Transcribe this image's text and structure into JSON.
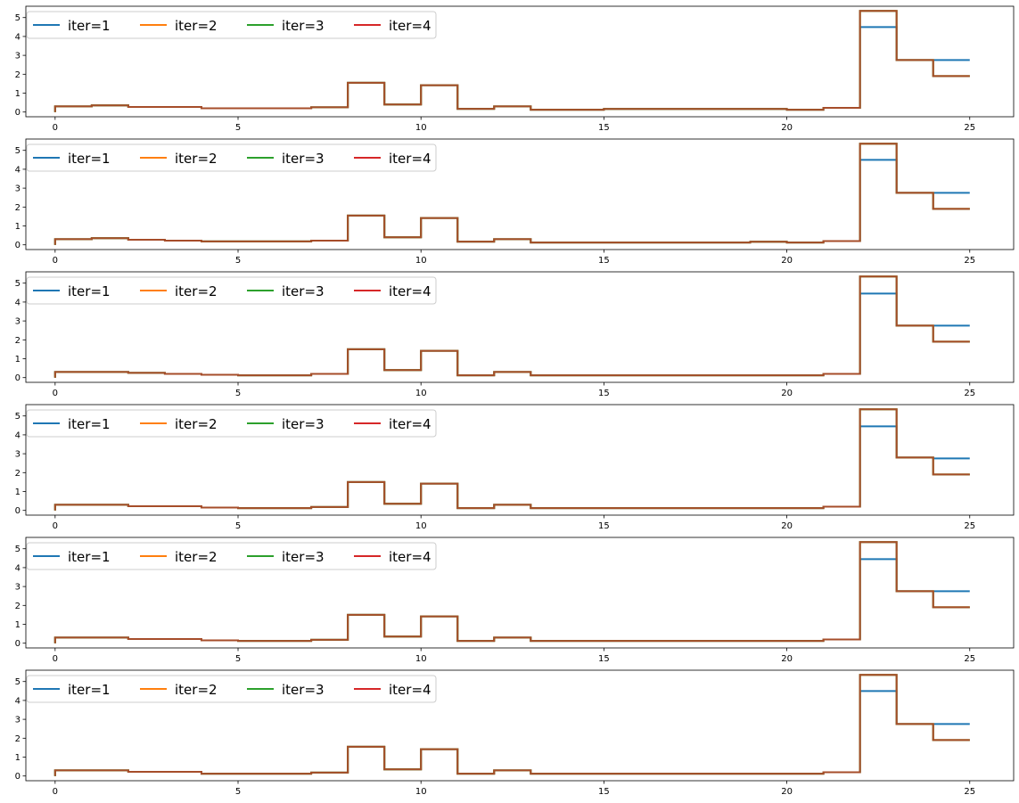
{
  "colors": {
    "iter1": "#1f77b4",
    "iter2": "#ff7f0e",
    "iter3": "#2ca02c",
    "iter4": "#d62728",
    "overlap": "#a64d2a"
  },
  "chart_data": [
    {
      "type": "line",
      "drawstyle": "steps-post",
      "xlim": [
        -0.8,
        26.2
      ],
      "ylim": [
        -0.25,
        5.6
      ],
      "xticks": [
        "0",
        "5",
        "10",
        "15",
        "20",
        "25"
      ],
      "yticks": [
        "0",
        "1",
        "2",
        "3",
        "4",
        "5"
      ],
      "legend": {
        "placement": "top-left",
        "ncol": 4
      },
      "x": [
        0,
        1,
        2,
        3,
        4,
        5,
        6,
        7,
        8,
        9,
        10,
        11,
        12,
        13,
        14,
        15,
        16,
        17,
        18,
        19,
        20,
        21,
        22,
        23,
        24,
        25
      ],
      "series": [
        {
          "name": "iter=1",
          "values": [
            0.3,
            0.35,
            0.27,
            0.27,
            0.2,
            0.2,
            0.2,
            0.25,
            1.55,
            0.4,
            1.42,
            0.17,
            0.3,
            0.12,
            0.12,
            0.16,
            0.16,
            0.16,
            0.16,
            0.16,
            0.12,
            0.22,
            4.5,
            2.75,
            2.75,
            2.75
          ]
        },
        {
          "name": "iter=2",
          "values": [
            0.3,
            0.35,
            0.27,
            0.27,
            0.2,
            0.2,
            0.2,
            0.25,
            1.55,
            0.4,
            1.42,
            0.17,
            0.3,
            0.12,
            0.12,
            0.16,
            0.16,
            0.16,
            0.16,
            0.16,
            0.12,
            0.22,
            5.35,
            2.75,
            1.9,
            1.9
          ]
        },
        {
          "name": "iter=3",
          "values": [
            0.3,
            0.35,
            0.27,
            0.27,
            0.2,
            0.2,
            0.2,
            0.25,
            1.55,
            0.4,
            1.42,
            0.17,
            0.3,
            0.12,
            0.12,
            0.16,
            0.16,
            0.16,
            0.16,
            0.16,
            0.12,
            0.22,
            5.35,
            2.75,
            1.9,
            1.9
          ]
        },
        {
          "name": "iter=4",
          "values": [
            0.3,
            0.35,
            0.27,
            0.27,
            0.2,
            0.2,
            0.2,
            0.25,
            1.55,
            0.4,
            1.42,
            0.17,
            0.3,
            0.12,
            0.12,
            0.16,
            0.16,
            0.16,
            0.16,
            0.16,
            0.12,
            0.22,
            5.35,
            2.75,
            1.9,
            1.9
          ]
        }
      ]
    },
    {
      "type": "line",
      "drawstyle": "steps-post",
      "xlim": [
        -0.8,
        26.2
      ],
      "ylim": [
        -0.25,
        5.6
      ],
      "xticks": [
        "0",
        "5",
        "10",
        "15",
        "20",
        "25"
      ],
      "yticks": [
        "0",
        "1",
        "2",
        "3",
        "4",
        "5"
      ],
      "legend": {
        "placement": "top-left",
        "ncol": 4
      },
      "x": [
        0,
        1,
        2,
        3,
        4,
        5,
        6,
        7,
        8,
        9,
        10,
        11,
        12,
        13,
        14,
        15,
        16,
        17,
        18,
        19,
        20,
        21,
        22,
        23,
        24,
        25
      ],
      "series": [
        {
          "name": "iter=1",
          "values": [
            0.3,
            0.35,
            0.27,
            0.22,
            0.18,
            0.18,
            0.18,
            0.22,
            1.55,
            0.4,
            1.42,
            0.17,
            0.3,
            0.12,
            0.12,
            0.12,
            0.12,
            0.12,
            0.12,
            0.16,
            0.12,
            0.2,
            4.5,
            2.75,
            2.75,
            2.75
          ]
        },
        {
          "name": "iter=2",
          "values": [
            0.3,
            0.35,
            0.27,
            0.22,
            0.18,
            0.18,
            0.18,
            0.22,
            1.55,
            0.4,
            1.42,
            0.17,
            0.3,
            0.12,
            0.12,
            0.12,
            0.12,
            0.12,
            0.12,
            0.16,
            0.12,
            0.2,
            5.35,
            2.75,
            1.9,
            1.9
          ]
        },
        {
          "name": "iter=3",
          "values": [
            0.3,
            0.35,
            0.27,
            0.22,
            0.18,
            0.18,
            0.18,
            0.22,
            1.55,
            0.4,
            1.42,
            0.17,
            0.3,
            0.12,
            0.12,
            0.12,
            0.12,
            0.12,
            0.12,
            0.16,
            0.12,
            0.2,
            5.35,
            2.75,
            1.9,
            1.9
          ]
        },
        {
          "name": "iter=4",
          "values": [
            0.3,
            0.35,
            0.27,
            0.22,
            0.18,
            0.18,
            0.18,
            0.22,
            1.55,
            0.4,
            1.42,
            0.17,
            0.3,
            0.12,
            0.12,
            0.12,
            0.12,
            0.12,
            0.12,
            0.16,
            0.12,
            0.2,
            5.35,
            2.75,
            1.9,
            1.9
          ]
        }
      ]
    },
    {
      "type": "line",
      "drawstyle": "steps-post",
      "xlim": [
        -0.8,
        26.2
      ],
      "ylim": [
        -0.25,
        5.6
      ],
      "xticks": [
        "0",
        "5",
        "10",
        "15",
        "20",
        "25"
      ],
      "yticks": [
        "0",
        "1",
        "2",
        "3",
        "4",
        "5"
      ],
      "legend": {
        "placement": "top-left",
        "ncol": 4
      },
      "x": [
        0,
        1,
        2,
        3,
        4,
        5,
        6,
        7,
        8,
        9,
        10,
        11,
        12,
        13,
        14,
        15,
        16,
        17,
        18,
        19,
        20,
        21,
        22,
        23,
        24,
        25
      ],
      "series": [
        {
          "name": "iter=1",
          "values": [
            0.3,
            0.3,
            0.25,
            0.2,
            0.15,
            0.12,
            0.12,
            0.2,
            1.5,
            0.4,
            1.42,
            0.12,
            0.3,
            0.12,
            0.12,
            0.12,
            0.12,
            0.12,
            0.12,
            0.12,
            0.12,
            0.2,
            4.45,
            2.75,
            2.75,
            2.75
          ]
        },
        {
          "name": "iter=2",
          "values": [
            0.3,
            0.3,
            0.25,
            0.2,
            0.15,
            0.12,
            0.12,
            0.2,
            1.5,
            0.4,
            1.42,
            0.12,
            0.3,
            0.12,
            0.12,
            0.12,
            0.12,
            0.12,
            0.12,
            0.12,
            0.12,
            0.2,
            5.35,
            2.75,
            1.9,
            1.9
          ]
        },
        {
          "name": "iter=3",
          "values": [
            0.3,
            0.3,
            0.25,
            0.2,
            0.15,
            0.12,
            0.12,
            0.2,
            1.5,
            0.4,
            1.42,
            0.12,
            0.3,
            0.12,
            0.12,
            0.12,
            0.12,
            0.12,
            0.12,
            0.12,
            0.12,
            0.2,
            5.35,
            2.75,
            1.9,
            1.9
          ]
        },
        {
          "name": "iter=4",
          "values": [
            0.3,
            0.3,
            0.25,
            0.2,
            0.15,
            0.12,
            0.12,
            0.2,
            1.5,
            0.4,
            1.42,
            0.12,
            0.3,
            0.12,
            0.12,
            0.12,
            0.12,
            0.12,
            0.12,
            0.12,
            0.12,
            0.2,
            5.35,
            2.75,
            1.9,
            1.9
          ]
        }
      ]
    },
    {
      "type": "line",
      "drawstyle": "steps-post",
      "xlim": [
        -0.8,
        26.2
      ],
      "ylim": [
        -0.25,
        5.6
      ],
      "xticks": [
        "0",
        "5",
        "10",
        "15",
        "20",
        "25"
      ],
      "yticks": [
        "0",
        "1",
        "2",
        "3",
        "4",
        "5"
      ],
      "legend": {
        "placement": "top-left",
        "ncol": 4
      },
      "x": [
        0,
        1,
        2,
        3,
        4,
        5,
        6,
        7,
        8,
        9,
        10,
        11,
        12,
        13,
        14,
        15,
        16,
        17,
        18,
        19,
        20,
        21,
        22,
        23,
        24,
        25
      ],
      "series": [
        {
          "name": "iter=1",
          "values": [
            0.3,
            0.3,
            0.22,
            0.22,
            0.15,
            0.12,
            0.12,
            0.18,
            1.5,
            0.35,
            1.42,
            0.12,
            0.3,
            0.12,
            0.12,
            0.12,
            0.12,
            0.12,
            0.12,
            0.12,
            0.12,
            0.2,
            4.45,
            2.8,
            2.75,
            2.75
          ]
        },
        {
          "name": "iter=2",
          "values": [
            0.3,
            0.3,
            0.22,
            0.22,
            0.15,
            0.12,
            0.12,
            0.18,
            1.5,
            0.35,
            1.42,
            0.12,
            0.3,
            0.12,
            0.12,
            0.12,
            0.12,
            0.12,
            0.12,
            0.12,
            0.12,
            0.2,
            5.35,
            2.8,
            1.9,
            1.9
          ]
        },
        {
          "name": "iter=3",
          "values": [
            0.3,
            0.3,
            0.22,
            0.22,
            0.15,
            0.12,
            0.12,
            0.18,
            1.5,
            0.35,
            1.42,
            0.12,
            0.3,
            0.12,
            0.12,
            0.12,
            0.12,
            0.12,
            0.12,
            0.12,
            0.12,
            0.2,
            5.35,
            2.8,
            1.9,
            1.9
          ]
        },
        {
          "name": "iter=4",
          "values": [
            0.3,
            0.3,
            0.22,
            0.22,
            0.15,
            0.12,
            0.12,
            0.18,
            1.5,
            0.35,
            1.42,
            0.12,
            0.3,
            0.12,
            0.12,
            0.12,
            0.12,
            0.12,
            0.12,
            0.12,
            0.12,
            0.2,
            5.35,
            2.8,
            1.9,
            1.9
          ]
        }
      ]
    },
    {
      "type": "line",
      "drawstyle": "steps-post",
      "xlim": [
        -0.8,
        26.2
      ],
      "ylim": [
        -0.25,
        5.6
      ],
      "xticks": [
        "0",
        "5",
        "10",
        "15",
        "20",
        "25"
      ],
      "yticks": [
        "0",
        "1",
        "2",
        "3",
        "4",
        "5"
      ],
      "legend": {
        "placement": "top-left",
        "ncol": 4
      },
      "x": [
        0,
        1,
        2,
        3,
        4,
        5,
        6,
        7,
        8,
        9,
        10,
        11,
        12,
        13,
        14,
        15,
        16,
        17,
        18,
        19,
        20,
        21,
        22,
        23,
        24,
        25
      ],
      "series": [
        {
          "name": "iter=1",
          "values": [
            0.3,
            0.3,
            0.22,
            0.22,
            0.15,
            0.12,
            0.12,
            0.18,
            1.5,
            0.35,
            1.42,
            0.12,
            0.3,
            0.12,
            0.12,
            0.12,
            0.12,
            0.12,
            0.12,
            0.12,
            0.12,
            0.2,
            4.45,
            2.75,
            2.75,
            2.75
          ]
        },
        {
          "name": "iter=2",
          "values": [
            0.3,
            0.3,
            0.22,
            0.22,
            0.15,
            0.12,
            0.12,
            0.18,
            1.5,
            0.35,
            1.42,
            0.12,
            0.3,
            0.12,
            0.12,
            0.12,
            0.12,
            0.12,
            0.12,
            0.12,
            0.12,
            0.2,
            5.35,
            2.75,
            1.9,
            1.9
          ]
        },
        {
          "name": "iter=3",
          "values": [
            0.3,
            0.3,
            0.22,
            0.22,
            0.15,
            0.12,
            0.12,
            0.18,
            1.5,
            0.35,
            1.42,
            0.12,
            0.3,
            0.12,
            0.12,
            0.12,
            0.12,
            0.12,
            0.12,
            0.12,
            0.12,
            0.2,
            5.35,
            2.75,
            1.9,
            1.9
          ]
        },
        {
          "name": "iter=4",
          "values": [
            0.3,
            0.3,
            0.22,
            0.22,
            0.15,
            0.12,
            0.12,
            0.18,
            1.5,
            0.35,
            1.42,
            0.12,
            0.3,
            0.12,
            0.12,
            0.12,
            0.12,
            0.12,
            0.12,
            0.12,
            0.12,
            0.2,
            5.35,
            2.75,
            1.9,
            1.9
          ]
        }
      ]
    },
    {
      "type": "line",
      "drawstyle": "steps-post",
      "xlim": [
        -0.8,
        26.2
      ],
      "ylim": [
        -0.25,
        5.6
      ],
      "xticks": [
        "0",
        "5",
        "10",
        "15",
        "20",
        "25"
      ],
      "yticks": [
        "0",
        "1",
        "2",
        "3",
        "4",
        "5"
      ],
      "legend": {
        "placement": "top-left",
        "ncol": 4
      },
      "x": [
        0,
        1,
        2,
        3,
        4,
        5,
        6,
        7,
        8,
        9,
        10,
        11,
        12,
        13,
        14,
        15,
        16,
        17,
        18,
        19,
        20,
        21,
        22,
        23,
        24,
        25
      ],
      "series": [
        {
          "name": "iter=1",
          "values": [
            0.3,
            0.3,
            0.22,
            0.22,
            0.12,
            0.12,
            0.12,
            0.18,
            1.55,
            0.35,
            1.42,
            0.12,
            0.3,
            0.12,
            0.12,
            0.12,
            0.12,
            0.12,
            0.12,
            0.12,
            0.12,
            0.2,
            4.5,
            2.75,
            2.75,
            2.75
          ]
        },
        {
          "name": "iter=2",
          "values": [
            0.3,
            0.3,
            0.22,
            0.22,
            0.12,
            0.12,
            0.12,
            0.18,
            1.55,
            0.35,
            1.42,
            0.12,
            0.3,
            0.12,
            0.12,
            0.12,
            0.12,
            0.12,
            0.12,
            0.12,
            0.12,
            0.2,
            5.35,
            2.75,
            1.9,
            1.9
          ]
        },
        {
          "name": "iter=3",
          "values": [
            0.3,
            0.3,
            0.22,
            0.22,
            0.12,
            0.12,
            0.12,
            0.18,
            1.55,
            0.35,
            1.42,
            0.12,
            0.3,
            0.12,
            0.12,
            0.12,
            0.12,
            0.12,
            0.12,
            0.12,
            0.12,
            0.2,
            5.35,
            2.75,
            1.9,
            1.9
          ]
        },
        {
          "name": "iter=4",
          "values": [
            0.3,
            0.3,
            0.22,
            0.22,
            0.12,
            0.12,
            0.12,
            0.18,
            1.55,
            0.35,
            1.42,
            0.12,
            0.3,
            0.12,
            0.12,
            0.12,
            0.12,
            0.12,
            0.12,
            0.12,
            0.12,
            0.2,
            5.35,
            2.75,
            1.9,
            1.9
          ]
        }
      ]
    }
  ]
}
